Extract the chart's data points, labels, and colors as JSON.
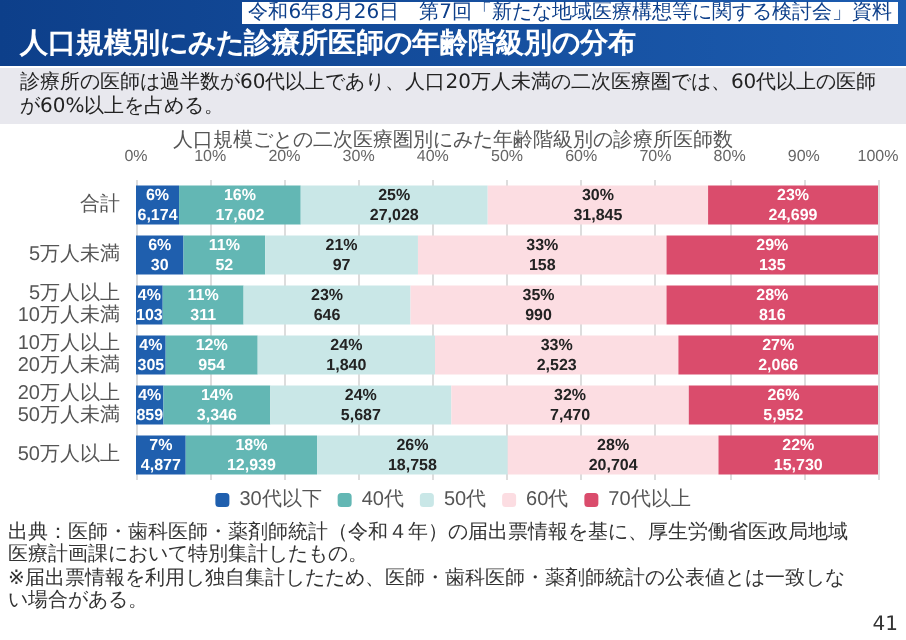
{
  "chart_data": {
    "type": "bar",
    "orientation": "horizontal",
    "stacked": true,
    "title": "人口規模別にみた診療所医師の年齢階級別の分布",
    "subtitle": "診療所の医師は過半数が60代以上であり、人口20万人未満の二次医療圏では、60代以上の医師が60%以上を占める。",
    "annotations": [
      "令和6年8月26日　第7回「新たな地域医療構想等に関する検討会」資料",
      "人口規模ごとの二次医療圏別にみた年齢階級別の診療所医師数",
      "出典：医師・歯科医師・薬剤師統計（令和４年）の届出票情報を基に、厚生労働省医政局地域医療計画課において特別集計したもの。",
      "※届出票情報を利用し独自集計したため、医師・歯科医師・薬剤師統計の公表値とは一致しない場合がある。",
      "41"
    ],
    "categories": [
      "合計",
      "5万人未満",
      "5万人以上\n10万人未満",
      "10万人以上\n20万人未満",
      "20万人以上\n50万人未満",
      "50万人以上"
    ],
    "series": [
      {
        "name": "30代以下",
        "color": "#1f5fae",
        "values": [
          5.8,
          6.4,
          3.6,
          4.0,
          3.7,
          6.7
        ],
        "value_labels": [
          "6%\n6,174",
          "6%\n30",
          "4%\n103",
          "4%\n305",
          "4%\n859",
          "7%\n4,877"
        ]
      },
      {
        "name": "40代",
        "color": "#63b7b4",
        "values": [
          16.4,
          11.0,
          10.9,
          12.4,
          14.4,
          17.7
        ],
        "value_labels": [
          "16%\n17,602",
          "11%\n52",
          "11%\n311",
          "12%\n954",
          "14%\n3,346",
          "18%\n12,939"
        ]
      },
      {
        "name": "50代",
        "color": "#c9e7e7",
        "values": [
          25.2,
          20.6,
          22.5,
          23.9,
          24.4,
          25.7
        ],
        "value_labels": [
          "25%\n27,028",
          "21%\n97",
          "23%\n646",
          "24%\n1,840",
          "24%\n5,687",
          "26%\n18,758"
        ]
      },
      {
        "name": "60代",
        "color": "#fcdde2",
        "values": [
          29.7,
          33.5,
          34.5,
          32.8,
          32.0,
          28.4
        ],
        "value_labels": [
          "30%\n31,845",
          "33%\n158",
          "35%\n990",
          "33%\n2,523",
          "32%\n7,470",
          "28%\n20,704"
        ]
      },
      {
        "name": "70代以上",
        "color": "#da4c6c",
        "values": [
          22.9,
          28.5,
          28.5,
          26.9,
          25.5,
          21.5
        ],
        "value_labels": [
          "23%\n24,699",
          "29%\n135",
          "28%\n816",
          "27%\n2,066",
          "26%\n5,952",
          "22%\n15,730"
        ]
      }
    ],
    "xlim": [
      0,
      100
    ],
    "xticks": [
      {
        "value": 0,
        "label": "0%"
      },
      {
        "value": 10,
        "label": "10%"
      },
      {
        "value": 20,
        "label": "20%"
      },
      {
        "value": 30,
        "label": "30%"
      },
      {
        "value": 40,
        "label": "40%"
      },
      {
        "value": 50,
        "label": "50%"
      },
      {
        "value": 60,
        "label": "60%"
      },
      {
        "value": 70,
        "label": "70%"
      },
      {
        "value": 80,
        "label": "80%"
      },
      {
        "value": 90,
        "label": "90%"
      },
      {
        "value": 100,
        "label": "100%"
      }
    ],
    "grid": "x",
    "legend": "bottom"
  }
}
